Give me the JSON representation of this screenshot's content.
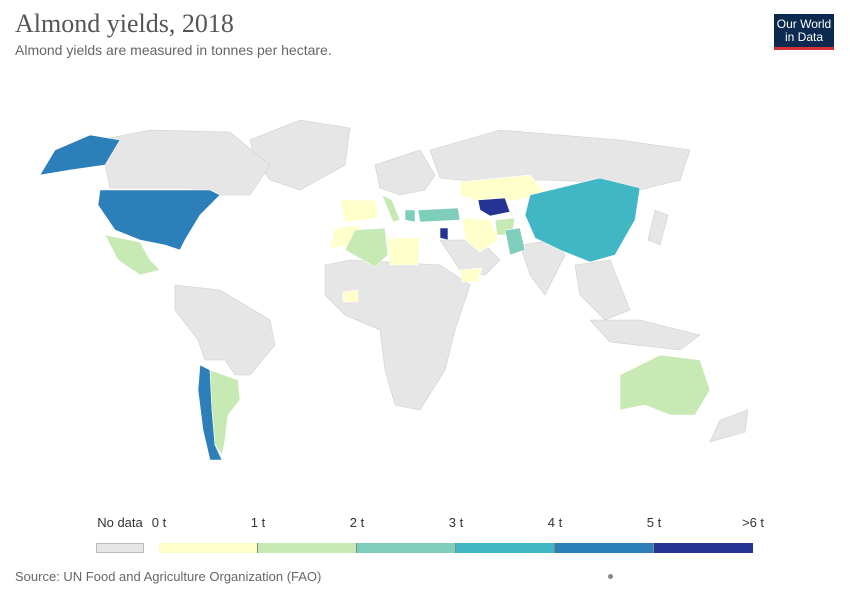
{
  "header": {
    "title": "Almond yields, 2018",
    "subtitle": "Almond yields are measured in tonnes per hectare."
  },
  "logo": {
    "line1": "Our World",
    "line2": "in Data"
  },
  "legend": {
    "no_data_label": "No data",
    "ticks": [
      "0 t",
      "1 t",
      "2 t",
      "3 t",
      "4 t",
      "5 t",
      ">6 t"
    ],
    "colors": [
      "#ffffcc",
      "#c7e9b4",
      "#7fcdbb",
      "#41b6c4",
      "#2c7fb8",
      "#253494"
    ],
    "no_data_color": "#e6e6e6"
  },
  "map": {
    "colored_regions": [
      {
        "name": "United States",
        "bin": 4
      },
      {
        "name": "Mexico",
        "bin": 1
      },
      {
        "name": "Chile",
        "bin": 4
      },
      {
        "name": "Argentina",
        "bin": 1
      },
      {
        "name": "Spain",
        "bin": 0
      },
      {
        "name": "Portugal",
        "bin": 0
      },
      {
        "name": "Morocco",
        "bin": 0
      },
      {
        "name": "Algeria",
        "bin": 1
      },
      {
        "name": "Tunisia",
        "bin": 0
      },
      {
        "name": "Libya",
        "bin": 0
      },
      {
        "name": "Italy",
        "bin": 1
      },
      {
        "name": "Greece",
        "bin": 2
      },
      {
        "name": "Turkey",
        "bin": 2
      },
      {
        "name": "Syria",
        "bin": 1
      },
      {
        "name": "Jordan",
        "bin": 5
      },
      {
        "name": "Iran",
        "bin": 0
      },
      {
        "name": "Afghanistan",
        "bin": 1
      },
      {
        "name": "Pakistan",
        "bin": 2
      },
      {
        "name": "Kazakhstan",
        "bin": 0
      },
      {
        "name": "Uzbekistan",
        "bin": 5
      },
      {
        "name": "China",
        "bin": 3
      },
      {
        "name": "Australia",
        "bin": 1
      },
      {
        "name": "Burkina Faso",
        "bin": 0
      },
      {
        "name": "Saudi Arabia",
        "bin": 0
      }
    ]
  },
  "source": "Source: UN Food and Agriculture Organization (FAO)"
}
